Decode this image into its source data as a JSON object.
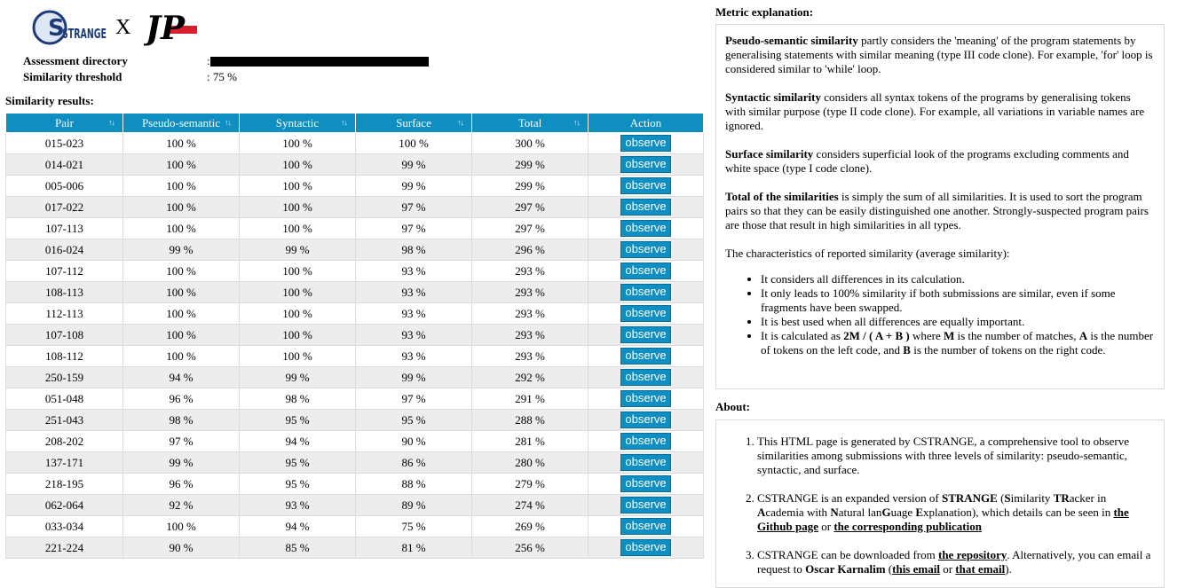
{
  "header": {
    "logo_strange_text": "STRANGE",
    "separator": "X",
    "logo_jp_text": "JP"
  },
  "meta": {
    "directory_label": "Assessment directory",
    "directory_value": ":",
    "threshold_label": "Similarity threshold",
    "threshold_value": ": 75 %"
  },
  "results": {
    "title": "Similarity results:",
    "columns": [
      "Pair",
      "Pseudo-semantic",
      "Syntactic",
      "Surface",
      "Total",
      "Action"
    ],
    "sort_glyph": "↑↓",
    "action_label": "observe",
    "rows": [
      {
        "pair": "015-023",
        "pseudo": "100 %",
        "syntactic": "100 %",
        "surface": "100 %",
        "total": "300 %"
      },
      {
        "pair": "014-021",
        "pseudo": "100 %",
        "syntactic": "100 %",
        "surface": "99 %",
        "total": "299 %"
      },
      {
        "pair": "005-006",
        "pseudo": "100 %",
        "syntactic": "100 %",
        "surface": "99 %",
        "total": "299 %"
      },
      {
        "pair": "017-022",
        "pseudo": "100 %",
        "syntactic": "100 %",
        "surface": "97 %",
        "total": "297 %"
      },
      {
        "pair": "107-113",
        "pseudo": "100 %",
        "syntactic": "100 %",
        "surface": "97 %",
        "total": "297 %"
      },
      {
        "pair": "016-024",
        "pseudo": "99 %",
        "syntactic": "99 %",
        "surface": "98 %",
        "total": "296 %"
      },
      {
        "pair": "107-112",
        "pseudo": "100 %",
        "syntactic": "100 %",
        "surface": "93 %",
        "total": "293 %"
      },
      {
        "pair": "108-113",
        "pseudo": "100 %",
        "syntactic": "100 %",
        "surface": "93 %",
        "total": "293 %"
      },
      {
        "pair": "112-113",
        "pseudo": "100 %",
        "syntactic": "100 %",
        "surface": "93 %",
        "total": "293 %"
      },
      {
        "pair": "107-108",
        "pseudo": "100 %",
        "syntactic": "100 %",
        "surface": "93 %",
        "total": "293 %"
      },
      {
        "pair": "108-112",
        "pseudo": "100 %",
        "syntactic": "100 %",
        "surface": "93 %",
        "total": "293 %"
      },
      {
        "pair": "250-159",
        "pseudo": "94 %",
        "syntactic": "99 %",
        "surface": "99 %",
        "total": "292 %"
      },
      {
        "pair": "051-048",
        "pseudo": "96 %",
        "syntactic": "98 %",
        "surface": "97 %",
        "total": "291 %"
      },
      {
        "pair": "251-043",
        "pseudo": "98 %",
        "syntactic": "95 %",
        "surface": "95 %",
        "total": "288 %"
      },
      {
        "pair": "208-202",
        "pseudo": "97 %",
        "syntactic": "94 %",
        "surface": "90 %",
        "total": "281 %"
      },
      {
        "pair": "137-171",
        "pseudo": "99 %",
        "syntactic": "95 %",
        "surface": "86 %",
        "total": "280 %"
      },
      {
        "pair": "218-195",
        "pseudo": "96 %",
        "syntactic": "95 %",
        "surface": "88 %",
        "total": "279 %"
      },
      {
        "pair": "062-064",
        "pseudo": "92 %",
        "syntactic": "93 %",
        "surface": "89 %",
        "total": "274 %"
      },
      {
        "pair": "033-034",
        "pseudo": "100 %",
        "syntactic": "94 %",
        "surface": "75 %",
        "total": "269 %"
      },
      {
        "pair": "221-224",
        "pseudo": "90 %",
        "syntactic": "85 %",
        "surface": "81 %",
        "total": "256 %"
      }
    ]
  },
  "metric": {
    "title": "Metric explanation:",
    "pseudo_term": "Pseudo-semantic similarity",
    "pseudo_text": " partly considers the 'meaning' of the program statements by generalising statements with similar meaning (type III code clone). For example, 'for' loop is considered similar to 'while' loop.",
    "syntactic_term": "Syntactic similarity",
    "syntactic_text": " considers all syntax tokens of the programs by generalising tokens with similar purpose (type II code clone). For example, all variations in variable names are ignored.",
    "surface_term": "Surface similarity",
    "surface_text": " considers superficial look of the programs excluding comments and white space (type I code clone).",
    "total_term": "Total of the similarities",
    "total_text": " is simply the sum of all similarities. It is used to sort the program pairs so that they can be easily distinguished one another. Strongly-suspected program pairs are those that result in high similarities in all types.",
    "characteristics": "The characteristics of reported similarity (average similarity):",
    "bullet1": "It considers all differences in its calculation.",
    "bullet2": "It only leads to 100% similarity if both submissions are similar, even if some fragments have been swapped.",
    "bullet3": "It is best used when all differences are equally important.",
    "bullet4_a": "It is calculated as ",
    "bullet4_formula": "2M / ( A + B )",
    "bullet4_b": " where ",
    "bullet4_m": "M",
    "bullet4_c": " is the number of matches, ",
    "bullet4_A": "A",
    "bullet4_d": " is the number of tokens on the left code, and ",
    "bullet4_B": "B",
    "bullet4_e": " is the number of tokens on the right code."
  },
  "about": {
    "title": "About:",
    "item1": "This HTML page is generated by CSTRANGE, a comprehensive tool to observe similarities among submissions with three levels of similarity: pseudo-semantic, syntactic, and surface.",
    "item2_a": "CSTRANGE is an expanded version of ",
    "item2_strange": "STRANGE",
    "item2_b": " (",
    "item2_S": "S",
    "item2_c": "imilarity ",
    "item2_TR": "TR",
    "item2_d": "acker in ",
    "item2_A": "A",
    "item2_e": "cademia with ",
    "item2_N": "N",
    "item2_f": "atural lan",
    "item2_G": "G",
    "item2_g": "uage ",
    "item2_E": "E",
    "item2_h": "xplanation), which details can be seen in ",
    "item2_link1": "the Github page",
    "item2_or": " or ",
    "item2_link2": "the corresponding publication",
    "item3_a": "CSTRANGE can be downloaded from ",
    "item3_link1": "the repository",
    "item3_b": ". Alternatively, you can email a request to ",
    "item3_name": "Oscar Karnalim",
    "item3_c": " (",
    "item3_link2": "this email",
    "item3_or": " or ",
    "item3_link3": "that email",
    "item3_d": ")."
  }
}
